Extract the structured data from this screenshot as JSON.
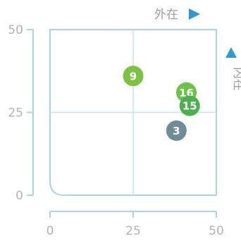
{
  "chart_data": {
    "type": "scatter",
    "xlabel": "外在",
    "ylabel": "内在",
    "xlim": [
      0,
      50
    ],
    "ylim": [
      0,
      50
    ],
    "x_ticks": [
      0,
      25,
      50
    ],
    "y_ticks": [
      0,
      25,
      50
    ],
    "grid": "center lines at 25",
    "points": [
      {
        "label": "9",
        "x": 25,
        "y": 36,
        "color": "#7dc243"
      },
      {
        "label": "16",
        "x": 41,
        "y": 31,
        "color": "#6cc24a"
      },
      {
        "label": "15",
        "x": 42,
        "y": 27,
        "color": "#4caf50"
      },
      {
        "label": "3",
        "x": 38,
        "y": 19.5,
        "color": "#6e8d99"
      }
    ]
  },
  "colors": {
    "axis": "#a8d4e6",
    "arrow": "#2e9ad6"
  },
  "icons": {
    "x_arrow": "right-triangle-icon",
    "y_arrow": "up-triangle-icon"
  }
}
